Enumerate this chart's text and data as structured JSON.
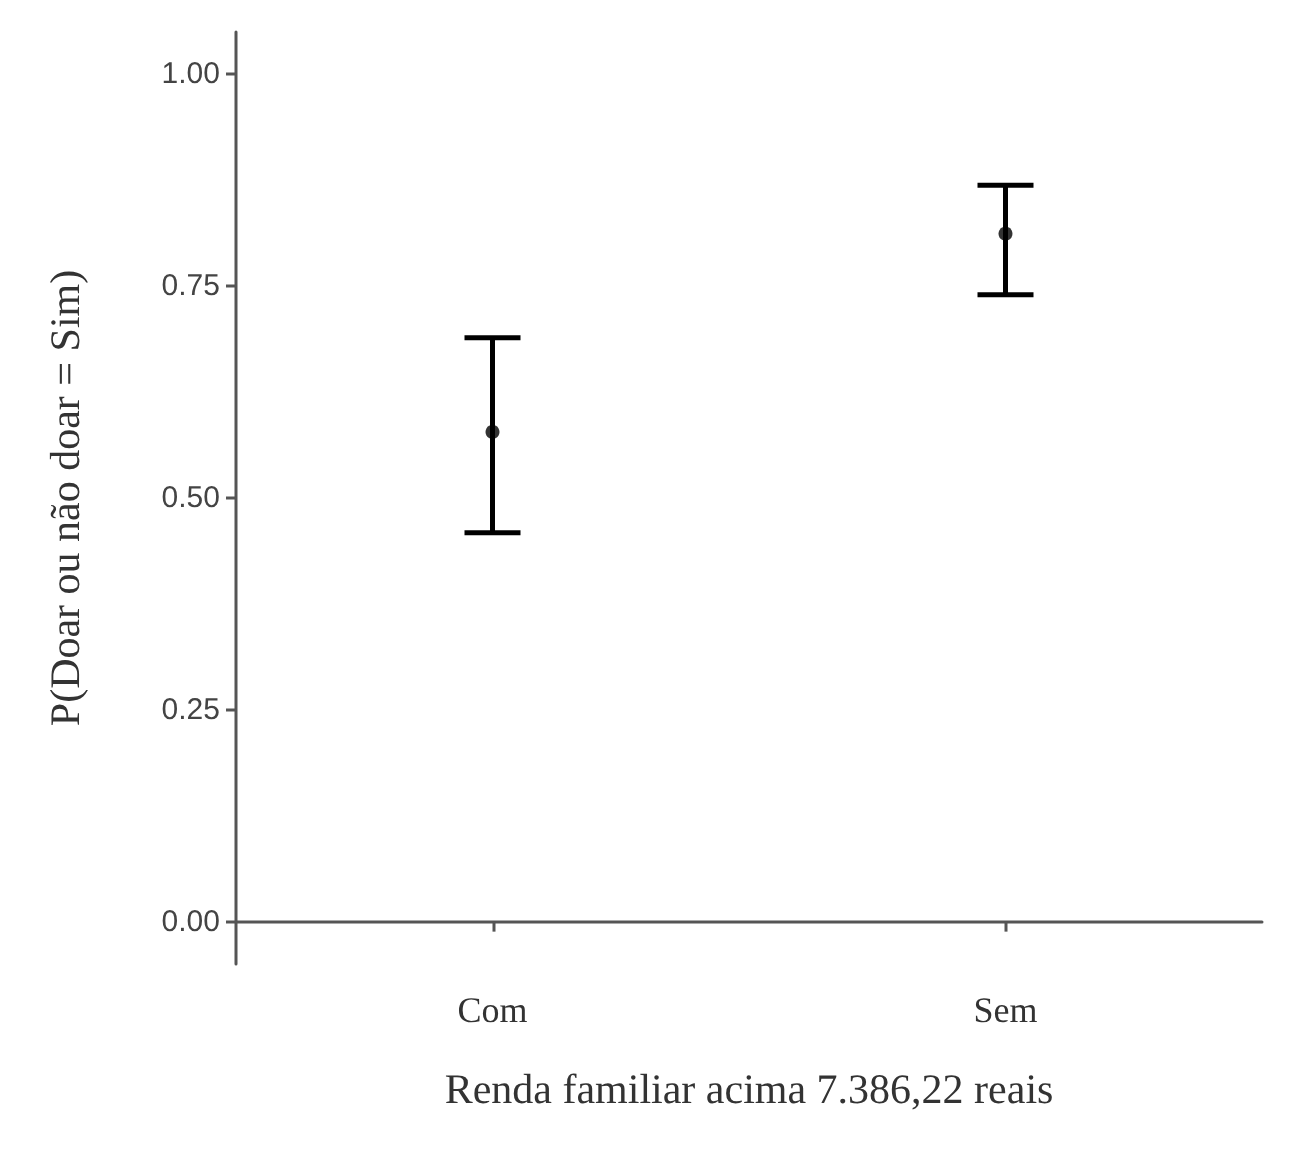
{
  "chart_data": {
    "type": "scatter",
    "xlabel": "Renda familiar acima 7.386,22 reais",
    "ylabel": "P(Doar ou não doar = Sim)",
    "categories": [
      "Com",
      "Sem"
    ],
    "series": [
      {
        "color": "#000000",
        "values": [
          0.578,
          0.812
        ],
        "errors": [
          [
            0.459,
            0.689
          ],
          [
            0.74,
            0.869
          ]
        ]
      }
    ],
    "ylim": [
      -0.05,
      1.05
    ],
    "yticks": [
      {
        "value": 0,
        "label": "0.00"
      },
      {
        "value": 0.25,
        "label": "0.25"
      },
      {
        "value": 0.5,
        "label": "0.50"
      },
      {
        "value": 0.75,
        "label": "0.75"
      },
      {
        "value": 1,
        "label": "1.00"
      }
    ],
    "marker": "circle"
  }
}
